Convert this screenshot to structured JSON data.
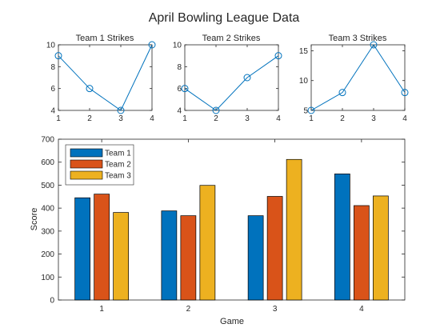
{
  "figure": {
    "title": "April Bowling League Data"
  },
  "chart_data": [
    {
      "type": "line",
      "title": "Team 1 Strikes",
      "x": [
        1,
        2,
        3,
        4
      ],
      "y": [
        9,
        6,
        4,
        10
      ],
      "xlim": [
        1,
        4
      ],
      "ylim": [
        4,
        10
      ],
      "xticks": [
        1,
        2,
        3,
        4
      ],
      "yticks": [
        4,
        6,
        8,
        10
      ],
      "color": "#0072BD",
      "marker": "circle"
    },
    {
      "type": "line",
      "title": "Team 2 Strikes",
      "x": [
        1,
        2,
        3,
        4
      ],
      "y": [
        6,
        4,
        7,
        9
      ],
      "xlim": [
        1,
        4
      ],
      "ylim": [
        4,
        10
      ],
      "xticks": [
        1,
        2,
        3,
        4
      ],
      "yticks": [
        4,
        6,
        8,
        10
      ],
      "color": "#0072BD",
      "marker": "circle"
    },
    {
      "type": "line",
      "title": "Team 3 Strikes",
      "x": [
        1,
        2,
        3,
        4
      ],
      "y": [
        5,
        8,
        16,
        8
      ],
      "xlim": [
        1,
        4
      ],
      "ylim": [
        5,
        16
      ],
      "xticks": [
        1,
        2,
        3,
        4
      ],
      "yticks": [
        5,
        10,
        15
      ],
      "color": "#0072BD",
      "marker": "circle"
    },
    {
      "type": "bar",
      "categories": [
        "1",
        "2",
        "3",
        "4"
      ],
      "series": [
        {
          "name": "Team 1",
          "values": [
            445,
            388,
            367,
            549
          ],
          "color": "#0072BD"
        },
        {
          "name": "Team 2",
          "values": [
            461,
            367,
            451,
            411
          ],
          "color": "#D95319"
        },
        {
          "name": "Team 3",
          "values": [
            381,
            499,
            612,
            453
          ],
          "color": "#EDB120"
        }
      ],
      "xlabel": "Game",
      "ylabel": "Score",
      "ylim": [
        0,
        700
      ],
      "yticks": [
        0,
        100,
        200,
        300,
        400,
        500,
        600,
        700
      ],
      "legend": "top-left"
    }
  ]
}
